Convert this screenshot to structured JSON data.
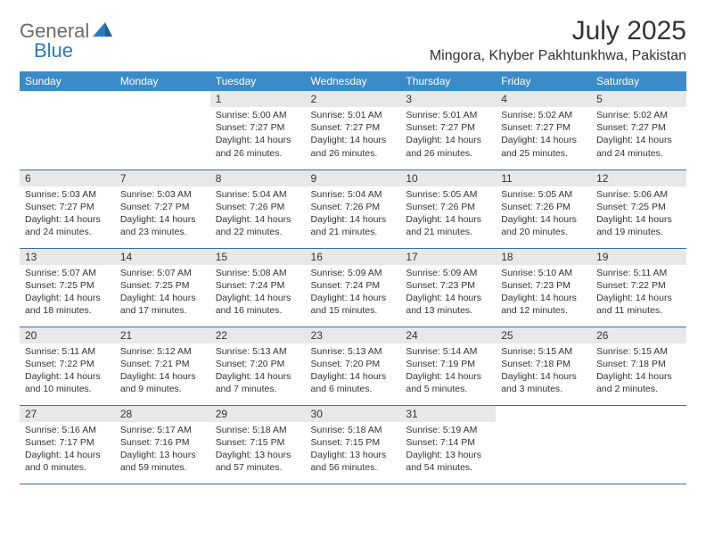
{
  "logo": {
    "part1": "General",
    "part2": "Blue"
  },
  "title": "July 2025",
  "location": "Mingora, Khyber Pakhtunkhwa, Pakistan",
  "colors": {
    "header_bg": "#3b8bc9",
    "header_text": "#ffffff",
    "daynum_bg": "#e8e8e8",
    "border": "#3b6f9e",
    "logo_gray": "#6a6a6a",
    "logo_blue": "#2a7ac0"
  },
  "weekdays": [
    "Sunday",
    "Monday",
    "Tuesday",
    "Wednesday",
    "Thursday",
    "Friday",
    "Saturday"
  ],
  "weeks": [
    [
      {
        "day": "",
        "sunrise": "",
        "sunset": "",
        "daylight": ""
      },
      {
        "day": "",
        "sunrise": "",
        "sunset": "",
        "daylight": ""
      },
      {
        "day": "1",
        "sunrise": "Sunrise: 5:00 AM",
        "sunset": "Sunset: 7:27 PM",
        "daylight": "Daylight: 14 hours and 26 minutes."
      },
      {
        "day": "2",
        "sunrise": "Sunrise: 5:01 AM",
        "sunset": "Sunset: 7:27 PM",
        "daylight": "Daylight: 14 hours and 26 minutes."
      },
      {
        "day": "3",
        "sunrise": "Sunrise: 5:01 AM",
        "sunset": "Sunset: 7:27 PM",
        "daylight": "Daylight: 14 hours and 26 minutes."
      },
      {
        "day": "4",
        "sunrise": "Sunrise: 5:02 AM",
        "sunset": "Sunset: 7:27 PM",
        "daylight": "Daylight: 14 hours and 25 minutes."
      },
      {
        "day": "5",
        "sunrise": "Sunrise: 5:02 AM",
        "sunset": "Sunset: 7:27 PM",
        "daylight": "Daylight: 14 hours and 24 minutes."
      }
    ],
    [
      {
        "day": "6",
        "sunrise": "Sunrise: 5:03 AM",
        "sunset": "Sunset: 7:27 PM",
        "daylight": "Daylight: 14 hours and 24 minutes."
      },
      {
        "day": "7",
        "sunrise": "Sunrise: 5:03 AM",
        "sunset": "Sunset: 7:27 PM",
        "daylight": "Daylight: 14 hours and 23 minutes."
      },
      {
        "day": "8",
        "sunrise": "Sunrise: 5:04 AM",
        "sunset": "Sunset: 7:26 PM",
        "daylight": "Daylight: 14 hours and 22 minutes."
      },
      {
        "day": "9",
        "sunrise": "Sunrise: 5:04 AM",
        "sunset": "Sunset: 7:26 PM",
        "daylight": "Daylight: 14 hours and 21 minutes."
      },
      {
        "day": "10",
        "sunrise": "Sunrise: 5:05 AM",
        "sunset": "Sunset: 7:26 PM",
        "daylight": "Daylight: 14 hours and 21 minutes."
      },
      {
        "day": "11",
        "sunrise": "Sunrise: 5:05 AM",
        "sunset": "Sunset: 7:26 PM",
        "daylight": "Daylight: 14 hours and 20 minutes."
      },
      {
        "day": "12",
        "sunrise": "Sunrise: 5:06 AM",
        "sunset": "Sunset: 7:25 PM",
        "daylight": "Daylight: 14 hours and 19 minutes."
      }
    ],
    [
      {
        "day": "13",
        "sunrise": "Sunrise: 5:07 AM",
        "sunset": "Sunset: 7:25 PM",
        "daylight": "Daylight: 14 hours and 18 minutes."
      },
      {
        "day": "14",
        "sunrise": "Sunrise: 5:07 AM",
        "sunset": "Sunset: 7:25 PM",
        "daylight": "Daylight: 14 hours and 17 minutes."
      },
      {
        "day": "15",
        "sunrise": "Sunrise: 5:08 AM",
        "sunset": "Sunset: 7:24 PM",
        "daylight": "Daylight: 14 hours and 16 minutes."
      },
      {
        "day": "16",
        "sunrise": "Sunrise: 5:09 AM",
        "sunset": "Sunset: 7:24 PM",
        "daylight": "Daylight: 14 hours and 15 minutes."
      },
      {
        "day": "17",
        "sunrise": "Sunrise: 5:09 AM",
        "sunset": "Sunset: 7:23 PM",
        "daylight": "Daylight: 14 hours and 13 minutes."
      },
      {
        "day": "18",
        "sunrise": "Sunrise: 5:10 AM",
        "sunset": "Sunset: 7:23 PM",
        "daylight": "Daylight: 14 hours and 12 minutes."
      },
      {
        "day": "19",
        "sunrise": "Sunrise: 5:11 AM",
        "sunset": "Sunset: 7:22 PM",
        "daylight": "Daylight: 14 hours and 11 minutes."
      }
    ],
    [
      {
        "day": "20",
        "sunrise": "Sunrise: 5:11 AM",
        "sunset": "Sunset: 7:22 PM",
        "daylight": "Daylight: 14 hours and 10 minutes."
      },
      {
        "day": "21",
        "sunrise": "Sunrise: 5:12 AM",
        "sunset": "Sunset: 7:21 PM",
        "daylight": "Daylight: 14 hours and 9 minutes."
      },
      {
        "day": "22",
        "sunrise": "Sunrise: 5:13 AM",
        "sunset": "Sunset: 7:20 PM",
        "daylight": "Daylight: 14 hours and 7 minutes."
      },
      {
        "day": "23",
        "sunrise": "Sunrise: 5:13 AM",
        "sunset": "Sunset: 7:20 PM",
        "daylight": "Daylight: 14 hours and 6 minutes."
      },
      {
        "day": "24",
        "sunrise": "Sunrise: 5:14 AM",
        "sunset": "Sunset: 7:19 PM",
        "daylight": "Daylight: 14 hours and 5 minutes."
      },
      {
        "day": "25",
        "sunrise": "Sunrise: 5:15 AM",
        "sunset": "Sunset: 7:18 PM",
        "daylight": "Daylight: 14 hours and 3 minutes."
      },
      {
        "day": "26",
        "sunrise": "Sunrise: 5:15 AM",
        "sunset": "Sunset: 7:18 PM",
        "daylight": "Daylight: 14 hours and 2 minutes."
      }
    ],
    [
      {
        "day": "27",
        "sunrise": "Sunrise: 5:16 AM",
        "sunset": "Sunset: 7:17 PM",
        "daylight": "Daylight: 14 hours and 0 minutes."
      },
      {
        "day": "28",
        "sunrise": "Sunrise: 5:17 AM",
        "sunset": "Sunset: 7:16 PM",
        "daylight": "Daylight: 13 hours and 59 minutes."
      },
      {
        "day": "29",
        "sunrise": "Sunrise: 5:18 AM",
        "sunset": "Sunset: 7:15 PM",
        "daylight": "Daylight: 13 hours and 57 minutes."
      },
      {
        "day": "30",
        "sunrise": "Sunrise: 5:18 AM",
        "sunset": "Sunset: 7:15 PM",
        "daylight": "Daylight: 13 hours and 56 minutes."
      },
      {
        "day": "31",
        "sunrise": "Sunrise: 5:19 AM",
        "sunset": "Sunset: 7:14 PM",
        "daylight": "Daylight: 13 hours and 54 minutes."
      },
      {
        "day": "",
        "sunrise": "",
        "sunset": "",
        "daylight": ""
      },
      {
        "day": "",
        "sunrise": "",
        "sunset": "",
        "daylight": ""
      }
    ]
  ]
}
